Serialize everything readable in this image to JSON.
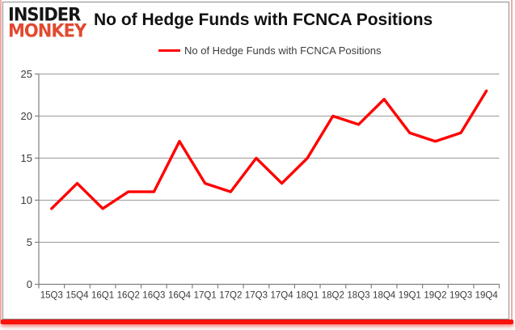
{
  "brand": {
    "line1": "INSIDER",
    "line2": "MONKEY",
    "color1": "#151515",
    "color2": "#e2492f"
  },
  "header": {
    "title": "No of Hedge Funds with FCNCA Positions"
  },
  "legend": {
    "label": "No of Hedge Funds with FCNCA Positions",
    "line_color": "#fe0000"
  },
  "chart_data": {
    "type": "line",
    "title": "No of Hedge Funds with FCNCA Positions",
    "series_name": "No of Hedge Funds with FCNCA Positions",
    "categories": [
      "15Q3",
      "15Q4",
      "16Q1",
      "16Q2",
      "16Q3",
      "16Q4",
      "17Q1",
      "17Q2",
      "17Q3",
      "17Q4",
      "18Q1",
      "18Q2",
      "18Q3",
      "18Q4",
      "19Q1",
      "19Q2",
      "19Q3",
      "19Q4"
    ],
    "values": [
      9,
      12,
      9,
      11,
      11,
      17,
      12,
      11,
      15,
      12,
      15,
      20,
      19,
      22,
      18,
      17,
      18,
      23
    ],
    "xlabel": "",
    "ylabel": "",
    "ylim": [
      0,
      25
    ],
    "yticks": [
      0,
      5,
      10,
      15,
      20,
      25
    ],
    "grid": true,
    "legend_position": "top",
    "line_color": "#fe0000",
    "grid_color": "#999999",
    "axis_color": "#808080",
    "tick_label_color": "#3a3a3a"
  }
}
